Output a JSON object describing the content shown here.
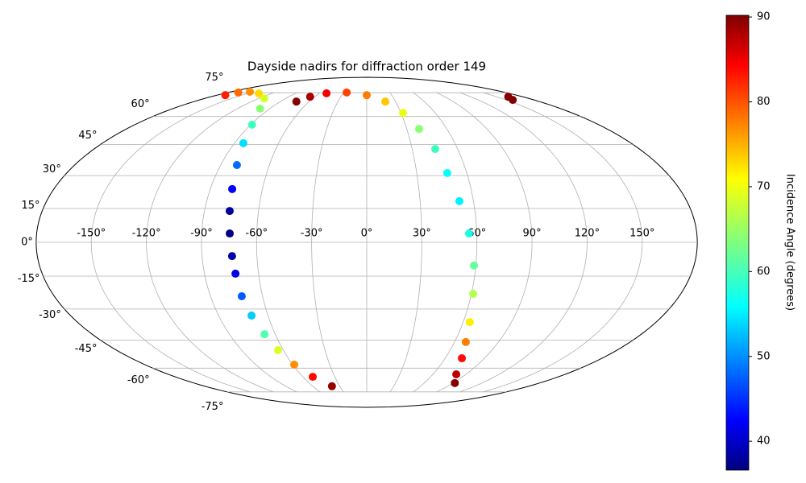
{
  "chart_data": {
    "type": "scatter",
    "projection": "mollweide",
    "title": "Dayside nadirs for diffraction order 149",
    "colorbar_label": "Incidence Angle (degrees)",
    "colormap": "jet",
    "clim": [
      36.6,
      90.2
    ],
    "cticks": [
      40,
      50,
      60,
      70,
      80,
      90
    ],
    "xlim": [
      -180,
      180
    ],
    "ylim": [
      -90,
      90
    ],
    "xticks": [
      {
        "value": -150,
        "label": "-150°"
      },
      {
        "value": -120,
        "label": "-120°"
      },
      {
        "value": -90,
        "label": "-90°"
      },
      {
        "value": -60,
        "label": "-60°"
      },
      {
        "value": -30,
        "label": "-30°"
      },
      {
        "value": 0,
        "label": "0°"
      },
      {
        "value": 30,
        "label": "30°"
      },
      {
        "value": 60,
        "label": "60°"
      },
      {
        "value": 90,
        "label": "90°"
      },
      {
        "value": 120,
        "label": "120°"
      },
      {
        "value": 150,
        "label": "150°"
      }
    ],
    "yticks": [
      {
        "value": -75,
        "label": "-75°"
      },
      {
        "value": -60,
        "label": "-60°"
      },
      {
        "value": -45,
        "label": "-45°"
      },
      {
        "value": -30,
        "label": "-30°"
      },
      {
        "value": -15,
        "label": "-15°"
      },
      {
        "value": 0,
        "label": "0°"
      },
      {
        "value": 15,
        "label": "15°"
      },
      {
        "value": 30,
        "label": "30°"
      },
      {
        "value": 45,
        "label": "45°"
      },
      {
        "value": 60,
        "label": "60°"
      },
      {
        "value": 75,
        "label": "75°"
      }
    ],
    "grid": true,
    "x": [
      -170,
      -166.7,
      -155,
      -136,
      -114,
      -99,
      -89,
      -84,
      -80,
      -77.4,
      -76,
      -74.7,
      -73.6,
      -72.8,
      -72,
      -70,
      -67,
      -63.8,
      -58.8,
      -50.7,
      -38.7,
      -73.3,
      -65.4,
      -50.9,
      -26,
      0,
      19.4,
      31.8,
      39.2,
      45.2,
      48.3,
      52.1,
      55.8,
      59.0,
      61.0,
      64.1,
      67.7,
      72.8,
      81.2,
      91.8,
      163.4,
      157.3
    ],
    "y": [
      73.3,
      75.2,
      75.7,
      74.5,
      71.1,
      64.6,
      55.4,
      45.7,
      35.0,
      23.8,
      13.9,
      3.9,
      -6.1,
      -13.9,
      -24.1,
      -33.1,
      -42.1,
      -50.2,
      -58.0,
      -65.1,
      -71.1,
      69.0,
      72.2,
      74.6,
      75.2,
      73.3,
      69.0,
      62.1,
      53.1,
      42.8,
      31.2,
      18.3,
      3.9,
      -10.3,
      -23.0,
      -36.2,
      -46.0,
      -54.5,
      -63.6,
      -69.0,
      72.2,
      70.1
    ],
    "values": [
      82,
      78,
      76,
      72,
      68,
      64,
      60,
      55,
      49,
      43,
      38,
      37,
      39,
      42,
      48,
      54,
      61,
      68,
      76,
      83,
      89,
      90,
      88,
      84,
      80,
      77,
      73,
      69,
      64,
      60,
      57,
      56,
      58,
      62,
      66,
      71,
      77,
      83,
      87,
      90,
      90,
      90
    ]
  }
}
